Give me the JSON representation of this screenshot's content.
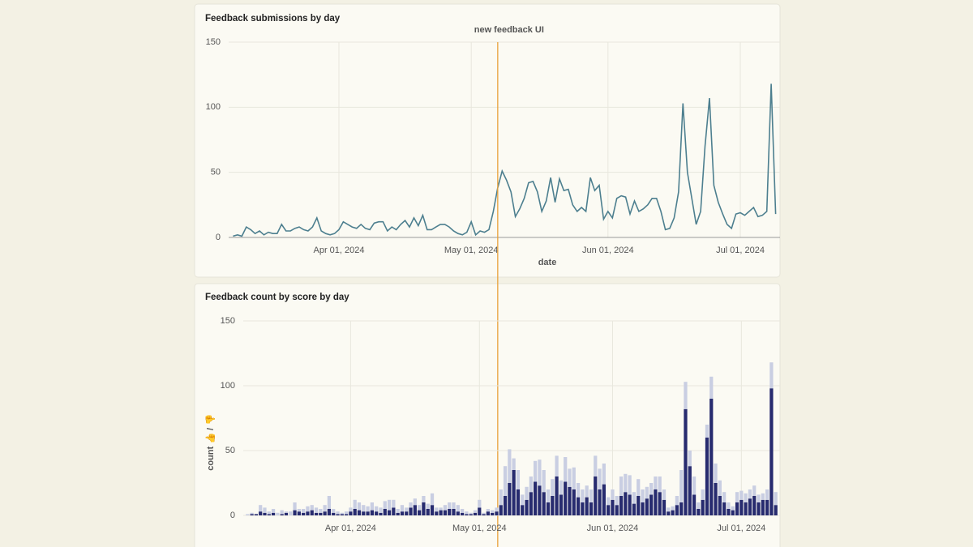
{
  "chart_data": [
    {
      "type": "line",
      "title": "Feedback submissions by day",
      "xlabel": "date",
      "color": "#4d7f8f",
      "annotations": [
        {
          "text": "new feedback UI",
          "x": "2024-05-07",
          "color": "#e8a23a"
        }
      ],
      "x": [
        "2024-03-08",
        "2024-03-09",
        "2024-03-10",
        "2024-03-11",
        "2024-03-12",
        "2024-03-13",
        "2024-03-14",
        "2024-03-15",
        "2024-03-16",
        "2024-03-17",
        "2024-03-18",
        "2024-03-19",
        "2024-03-20",
        "2024-03-21",
        "2024-03-22",
        "2024-03-23",
        "2024-03-24",
        "2024-03-25",
        "2024-03-26",
        "2024-03-27",
        "2024-03-28",
        "2024-03-29",
        "2024-03-30",
        "2024-03-31",
        "2024-04-01",
        "2024-04-02",
        "2024-04-03",
        "2024-04-04",
        "2024-04-05",
        "2024-04-06",
        "2024-04-07",
        "2024-04-08",
        "2024-04-09",
        "2024-04-10",
        "2024-04-11",
        "2024-04-12",
        "2024-04-13",
        "2024-04-14",
        "2024-04-15",
        "2024-04-16",
        "2024-04-17",
        "2024-04-18",
        "2024-04-19",
        "2024-04-20",
        "2024-04-21",
        "2024-04-22",
        "2024-04-23",
        "2024-04-24",
        "2024-04-25",
        "2024-04-26",
        "2024-04-27",
        "2024-04-28",
        "2024-04-29",
        "2024-04-30",
        "2024-05-01",
        "2024-05-02",
        "2024-05-03",
        "2024-05-04",
        "2024-05-05",
        "2024-05-06",
        "2024-05-07",
        "2024-05-08",
        "2024-05-09",
        "2024-05-10",
        "2024-05-11",
        "2024-05-12",
        "2024-05-13",
        "2024-05-14",
        "2024-05-15",
        "2024-05-16",
        "2024-05-17",
        "2024-05-18",
        "2024-05-19",
        "2024-05-20",
        "2024-05-21",
        "2024-05-22",
        "2024-05-23",
        "2024-05-24",
        "2024-05-25",
        "2024-05-26",
        "2024-05-27",
        "2024-05-28",
        "2024-05-29",
        "2024-05-30",
        "2024-05-31",
        "2024-06-01",
        "2024-06-02",
        "2024-06-03",
        "2024-06-04",
        "2024-06-05",
        "2024-06-06",
        "2024-06-07",
        "2024-06-08",
        "2024-06-09",
        "2024-06-10",
        "2024-06-11",
        "2024-06-12",
        "2024-06-13",
        "2024-06-14",
        "2024-06-15",
        "2024-06-16",
        "2024-06-17",
        "2024-06-18",
        "2024-06-19",
        "2024-06-20",
        "2024-06-21",
        "2024-06-22",
        "2024-06-23",
        "2024-06-24",
        "2024-06-25",
        "2024-06-26",
        "2024-06-27",
        "2024-06-28",
        "2024-06-29",
        "2024-06-30",
        "2024-07-01",
        "2024-07-02",
        "2024-07-03",
        "2024-07-04",
        "2024-07-05",
        "2024-07-06",
        "2024-07-07",
        "2024-07-08",
        "2024-07-09"
      ],
      "values": [
        1,
        2,
        1,
        8,
        6,
        3,
        5,
        2,
        4,
        3,
        3,
        10,
        5,
        5,
        7,
        8,
        6,
        5,
        8,
        15,
        5,
        3,
        2,
        3,
        6,
        12,
        10,
        8,
        7,
        10,
        7,
        6,
        11,
        12,
        12,
        5,
        8,
        6,
        10,
        13,
        8,
        15,
        9,
        17,
        6,
        6,
        8,
        10,
        10,
        8,
        5,
        3,
        2,
        4,
        12,
        2,
        5,
        4,
        6,
        20,
        38,
        51,
        44,
        35,
        16,
        22,
        30,
        42,
        43,
        35,
        20,
        28,
        46,
        27,
        45,
        36,
        37,
        25,
        20,
        23,
        20,
        46,
        36,
        40,
        14,
        20,
        15,
        30,
        32,
        31,
        18,
        28,
        20,
        22,
        25,
        30,
        30,
        20,
        6,
        7,
        15,
        35,
        103,
        50,
        30,
        10,
        20,
        70,
        107,
        40,
        27,
        18,
        10,
        7,
        18,
        19,
        17,
        20,
        23,
        16,
        17,
        20,
        118,
        18
      ],
      "xlim": [
        "2024-03-07",
        "2024-07-10"
      ],
      "xticks": [
        {
          "value": "2024-04-01",
          "label": "Apr 01, 2024"
        },
        {
          "value": "2024-05-01",
          "label": "May 01, 2024"
        },
        {
          "value": "2024-06-01",
          "label": "Jun 01, 2024"
        },
        {
          "value": "2024-07-01",
          "label": "Jul 01, 2024"
        }
      ],
      "ylim": [
        0,
        150
      ],
      "yticks": [
        0,
        50,
        100,
        150
      ],
      "grid": true
    },
    {
      "type": "stacked_bar",
      "title": "Feedback count by score by day",
      "ylabel": "count 👍 / 👎",
      "x": [
        "2024-03-08",
        "2024-03-09",
        "2024-03-10",
        "2024-03-11",
        "2024-03-12",
        "2024-03-13",
        "2024-03-14",
        "2024-03-15",
        "2024-03-16",
        "2024-03-17",
        "2024-03-18",
        "2024-03-19",
        "2024-03-20",
        "2024-03-21",
        "2024-03-22",
        "2024-03-23",
        "2024-03-24",
        "2024-03-25",
        "2024-03-26",
        "2024-03-27",
        "2024-03-28",
        "2024-03-29",
        "2024-03-30",
        "2024-03-31",
        "2024-04-01",
        "2024-04-02",
        "2024-04-03",
        "2024-04-04",
        "2024-04-05",
        "2024-04-06",
        "2024-04-07",
        "2024-04-08",
        "2024-04-09",
        "2024-04-10",
        "2024-04-11",
        "2024-04-12",
        "2024-04-13",
        "2024-04-14",
        "2024-04-15",
        "2024-04-16",
        "2024-04-17",
        "2024-04-18",
        "2024-04-19",
        "2024-04-20",
        "2024-04-21",
        "2024-04-22",
        "2024-04-23",
        "2024-04-24",
        "2024-04-25",
        "2024-04-26",
        "2024-04-27",
        "2024-04-28",
        "2024-04-29",
        "2024-04-30",
        "2024-05-01",
        "2024-05-02",
        "2024-05-03",
        "2024-05-04",
        "2024-05-05",
        "2024-05-06",
        "2024-05-07",
        "2024-05-08",
        "2024-05-09",
        "2024-05-10",
        "2024-05-11",
        "2024-05-12",
        "2024-05-13",
        "2024-05-14",
        "2024-05-15",
        "2024-05-16",
        "2024-05-17",
        "2024-05-18",
        "2024-05-19",
        "2024-05-20",
        "2024-05-21",
        "2024-05-22",
        "2024-05-23",
        "2024-05-24",
        "2024-05-25",
        "2024-05-26",
        "2024-05-27",
        "2024-05-28",
        "2024-05-29",
        "2024-05-30",
        "2024-05-31",
        "2024-06-01",
        "2024-06-02",
        "2024-06-03",
        "2024-06-04",
        "2024-06-05",
        "2024-06-06",
        "2024-06-07",
        "2024-06-08",
        "2024-06-09",
        "2024-06-10",
        "2024-06-11",
        "2024-06-12",
        "2024-06-13",
        "2024-06-14",
        "2024-06-15",
        "2024-06-16",
        "2024-06-17",
        "2024-06-18",
        "2024-06-19",
        "2024-06-20",
        "2024-06-21",
        "2024-06-22",
        "2024-06-23",
        "2024-06-24",
        "2024-06-25",
        "2024-06-26",
        "2024-06-27",
        "2024-06-28",
        "2024-06-29",
        "2024-06-30",
        "2024-07-01",
        "2024-07-02",
        "2024-07-03",
        "2024-07-04",
        "2024-07-05",
        "2024-07-06",
        "2024-07-07",
        "2024-07-08",
        "2024-07-09"
      ],
      "series": [
        {
          "color": "#272b6f",
          "values": [
            0,
            1,
            1,
            3,
            2,
            1,
            2,
            0,
            1,
            2,
            0,
            4,
            3,
            2,
            3,
            4,
            2,
            2,
            3,
            5,
            2,
            1,
            1,
            1,
            3,
            5,
            4,
            3,
            3,
            4,
            3,
            2,
            5,
            4,
            6,
            2,
            3,
            3,
            6,
            8,
            4,
            10,
            5,
            8,
            3,
            4,
            4,
            5,
            5,
            3,
            2,
            1,
            1,
            2,
            6,
            1,
            3,
            2,
            3,
            8,
            15,
            25,
            35,
            20,
            8,
            12,
            18,
            26,
            23,
            18,
            10,
            15,
            30,
            16,
            26,
            22,
            20,
            14,
            10,
            14,
            10,
            30,
            20,
            24,
            8,
            12,
            8,
            15,
            18,
            16,
            9,
            15,
            10,
            13,
            16,
            20,
            18,
            12,
            3,
            4,
            8,
            10,
            82,
            38,
            16,
            5,
            12,
            60,
            90,
            25,
            15,
            10,
            5,
            4,
            10,
            12,
            10,
            13,
            15,
            10,
            12,
            12,
            98,
            8
          ]
        },
        {
          "color": "#c9cee2",
          "values": [
            1,
            1,
            0,
            5,
            4,
            2,
            3,
            2,
            3,
            1,
            3,
            6,
            2,
            3,
            4,
            4,
            4,
            3,
            5,
            10,
            3,
            2,
            1,
            2,
            3,
            7,
            6,
            5,
            4,
            6,
            4,
            4,
            6,
            8,
            6,
            3,
            5,
            3,
            4,
            5,
            4,
            5,
            4,
            9,
            3,
            2,
            4,
            5,
            5,
            5,
            3,
            2,
            1,
            2,
            6,
            1,
            2,
            2,
            3,
            12,
            23,
            26,
            9,
            15,
            8,
            10,
            12,
            16,
            20,
            17,
            10,
            13,
            16,
            11,
            19,
            14,
            17,
            11,
            10,
            9,
            10,
            16,
            16,
            16,
            6,
            8,
            7,
            15,
            14,
            15,
            9,
            13,
            10,
            9,
            9,
            10,
            12,
            8,
            3,
            3,
            7,
            25,
            21,
            12,
            14,
            5,
            8,
            10,
            17,
            15,
            12,
            8,
            5,
            3,
            8,
            7,
            7,
            7,
            8,
            6,
            5,
            8,
            20,
            10
          ]
        }
      ],
      "xlim": [
        "2024-03-07",
        "2024-07-10"
      ],
      "xticks": [
        {
          "value": "2024-04-01",
          "label": "Apr 01, 2024"
        },
        {
          "value": "2024-05-01",
          "label": "May 01, 2024"
        },
        {
          "value": "2024-06-01",
          "label": "Jun 01, 2024"
        },
        {
          "value": "2024-07-01",
          "label": "Jul 01, 2024"
        }
      ],
      "ylim": [
        0,
        150
      ],
      "yticks": [
        0,
        50,
        100,
        150
      ],
      "grid": true
    }
  ]
}
